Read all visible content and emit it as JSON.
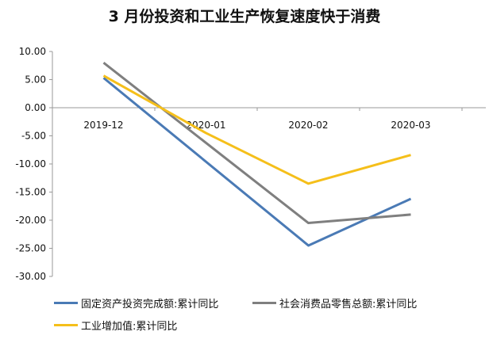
{
  "chart_data": {
    "type": "line",
    "title": "3 月份投资和工业生产恢复速度快于消费",
    "categories": [
      "2019-12",
      "2020-01",
      "2020-02",
      "2020-03"
    ],
    "ylim": [
      -30,
      10
    ],
    "yticks": [
      "10.00",
      "5.00",
      "0.00",
      "-5.00",
      "-10.00",
      "-15.00",
      "-20.00",
      "-25.00",
      "-30.00"
    ],
    "grid": false,
    "legend_position": "bottom",
    "series": [
      {
        "name": "固定资产投资完成额:累计同比",
        "color": "#4a7ab5",
        "values": [
          5.3,
          null,
          -24.5,
          -16.2
        ]
      },
      {
        "name": "社会消费品零售总额:累计同比",
        "color": "#7f7f7f",
        "values": [
          8.0,
          null,
          -20.5,
          -19.0
        ]
      },
      {
        "name": "工业增加值:累计同比",
        "color": "#f5bf1a",
        "values": [
          5.7,
          -4.5,
          -13.5,
          -8.4
        ]
      }
    ]
  }
}
